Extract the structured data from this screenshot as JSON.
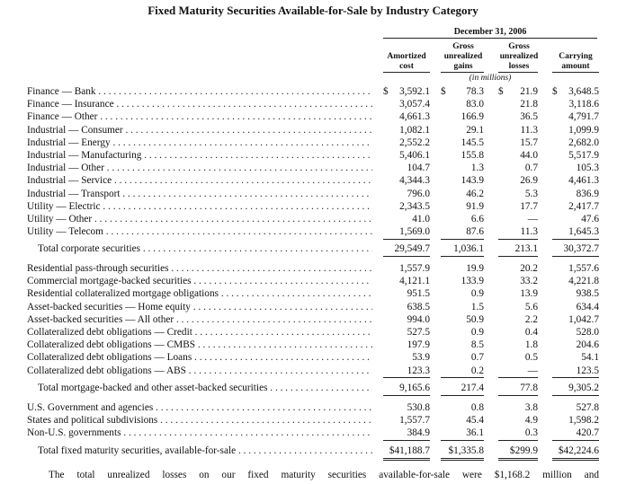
{
  "title": "Fixed Maturity Securities Available-for-Sale by Industry Category",
  "date_header": "December 31, 2006",
  "columns": {
    "amortized": [
      "Amortized",
      "cost"
    ],
    "gains": [
      "Gross",
      "unrealized",
      "gains"
    ],
    "losses": [
      "Gross",
      "unrealized",
      "losses"
    ],
    "carrying": [
      "Carrying",
      "amount"
    ]
  },
  "units_note": "(in millions)",
  "sections": [
    {
      "rows": [
        {
          "label": "Finance — Bank",
          "cost": "3,592.1",
          "gains": "78.3",
          "losses": "21.9",
          "carrying": "3,648.5",
          "dollar": "$"
        },
        {
          "label": "Finance — Insurance",
          "cost": "3,057.4",
          "gains": "83.0",
          "losses": "21.8",
          "carrying": "3,118.6"
        },
        {
          "label": "Finance — Other",
          "cost": "4,661.3",
          "gains": "166.9",
          "losses": "36.5",
          "carrying": "4,791.7"
        },
        {
          "label": "Industrial — Consumer",
          "cost": "1,082.1",
          "gains": "29.1",
          "losses": "11.3",
          "carrying": "1,099.9"
        },
        {
          "label": "Industrial — Energy",
          "cost": "2,552.2",
          "gains": "145.5",
          "losses": "15.7",
          "carrying": "2,682.0"
        },
        {
          "label": "Industrial — Manufacturing",
          "cost": "5,406.1",
          "gains": "155.8",
          "losses": "44.0",
          "carrying": "5,517.9"
        },
        {
          "label": "Industrial — Other",
          "cost": "104.7",
          "gains": "1.3",
          "losses": "0.7",
          "carrying": "105.3"
        },
        {
          "label": "Industrial — Service",
          "cost": "4,344.3",
          "gains": "143.9",
          "losses": "26.9",
          "carrying": "4,461.3"
        },
        {
          "label": "Industrial — Transport",
          "cost": "796.0",
          "gains": "46.2",
          "losses": "5.3",
          "carrying": "836.9"
        },
        {
          "label": "Utility — Electric",
          "cost": "2,343.5",
          "gains": "91.9",
          "losses": "17.7",
          "carrying": "2,417.7"
        },
        {
          "label": "Utility — Other",
          "cost": "41.0",
          "gains": "6.6",
          "losses": "—",
          "carrying": "47.6"
        },
        {
          "label": "Utility — Telecom",
          "cost": "1,569.0",
          "gains": "87.6",
          "losses": "11.3",
          "carrying": "1,645.3"
        }
      ],
      "total": {
        "label": "Total corporate securities",
        "cost": "29,549.7",
        "gains": "1,036.1",
        "losses": "213.1",
        "carrying": "30,372.7"
      }
    },
    {
      "rows": [
        {
          "label": "Residential pass-through securities",
          "cost": "1,557.9",
          "gains": "19.9",
          "losses": "20.2",
          "carrying": "1,557.6"
        },
        {
          "label": "Commercial mortgage-backed securities",
          "cost": "4,121.1",
          "gains": "133.9",
          "losses": "33.2",
          "carrying": "4,221.8"
        },
        {
          "label": "Residential collateralized mortgage obligations",
          "cost": "951.5",
          "gains": "0.9",
          "losses": "13.9",
          "carrying": "938.5"
        },
        {
          "label": "Asset-backed securities — Home equity",
          "cost": "638.5",
          "gains": "1.5",
          "losses": "5.6",
          "carrying": "634.4"
        },
        {
          "label": "Asset-backed securities — All other",
          "cost": "994.0",
          "gains": "50.9",
          "losses": "2.2",
          "carrying": "1,042.7"
        },
        {
          "label": "Collateralized debt obligations — Credit",
          "cost": "527.5",
          "gains": "0.9",
          "losses": "0.4",
          "carrying": "528.0"
        },
        {
          "label": "Collateralized debt obligations — CMBS",
          "cost": "197.9",
          "gains": "8.5",
          "losses": "1.8",
          "carrying": "204.6"
        },
        {
          "label": "Collateralized debt obligations — Loans",
          "cost": "53.9",
          "gains": "0.7",
          "losses": "0.5",
          "carrying": "54.1"
        },
        {
          "label": "Collateralized debt obligations — ABS",
          "cost": "123.3",
          "gains": "0.2",
          "losses": "—",
          "carrying": "123.5"
        }
      ],
      "total": {
        "label": "Total mortgage-backed and other asset-backed securities",
        "cost": "9,165.6",
        "gains": "217.4",
        "losses": "77.8",
        "carrying": "9,305.2"
      }
    },
    {
      "rows": [
        {
          "label": "U.S. Government and agencies",
          "cost": "530.8",
          "gains": "0.8",
          "losses": "3.8",
          "carrying": "527.8"
        },
        {
          "label": "States and political subdivisions",
          "cost": "1,557.7",
          "gains": "45.4",
          "losses": "4.9",
          "carrying": "1,598.2"
        },
        {
          "label": "Non-U.S. governments",
          "cost": "384.9",
          "gains": "36.1",
          "losses": "0.3",
          "carrying": "420.7"
        }
      ],
      "total": {
        "label": "Total fixed maturity securities, available-for-sale",
        "cost": "$41,188.7",
        "gains": "$1,335.8",
        "losses": "$299.9",
        "carrying": "$42,224.6"
      }
    }
  ],
  "footer_text": "The total unrealized losses on our fixed maturity securities available-for-sale were $1,168.2 million and"
}
